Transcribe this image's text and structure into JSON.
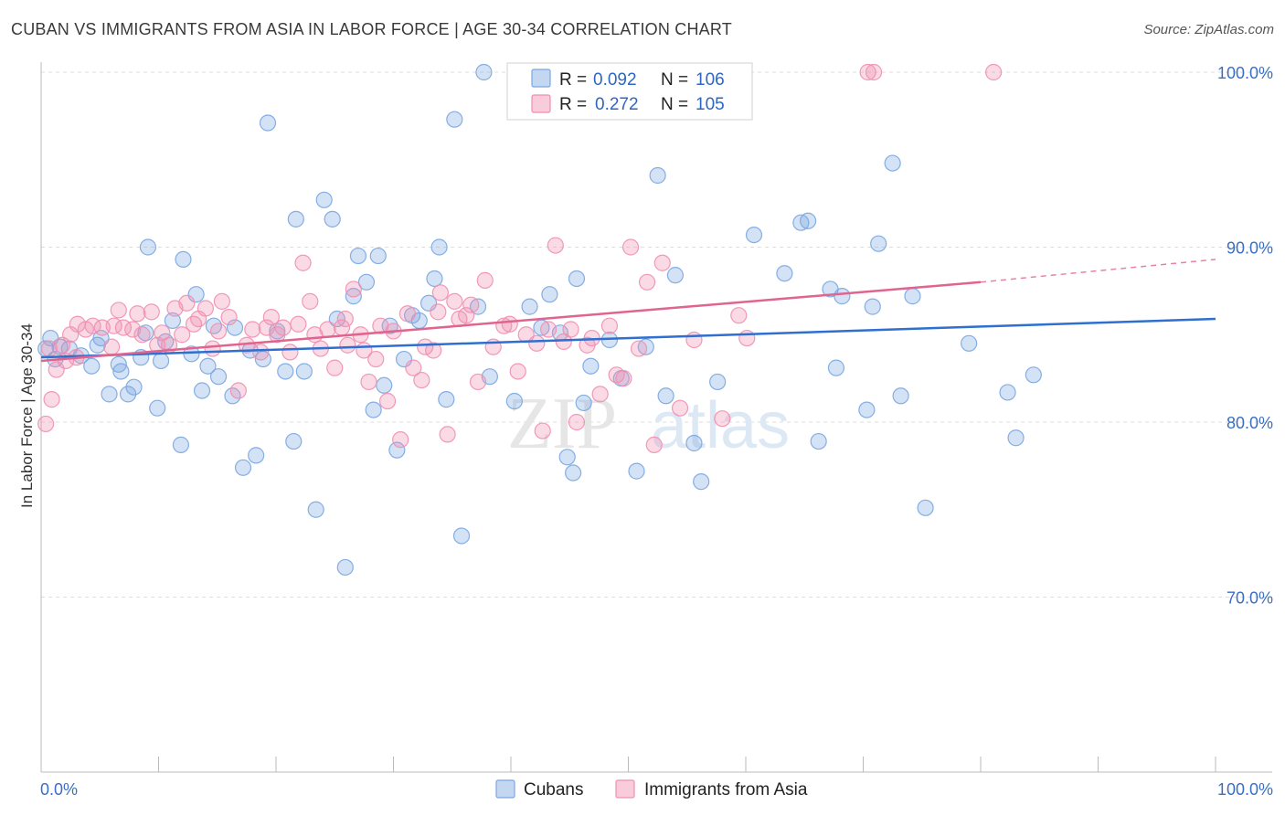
{
  "title": "CUBAN VS IMMIGRANTS FROM ASIA IN LABOR FORCE | AGE 30-34 CORRELATION CHART",
  "source": "Source: ZipAtlas.com",
  "watermark": "ZIPatlas",
  "chart_data": {
    "type": "scatter",
    "ylabel": "In Labor Force | Age 30-34",
    "xlim": [
      0,
      100
    ],
    "ylim": [
      60,
      102
    ],
    "x_tick_labels": [
      "0.0%",
      "100.0%"
    ],
    "y_ticks": [
      {
        "value": 100,
        "label": "100.0%"
      },
      {
        "value": 90,
        "label": "90.0%"
      },
      {
        "value": 80,
        "label": "80.0%"
      },
      {
        "value": 70,
        "label": "70.0%"
      }
    ],
    "legend": {
      "rows": [
        {
          "r_label": "R =",
          "r_value": "0.092",
          "n_label": "N =",
          "n_value": "106",
          "color": "#7aa6e0"
        },
        {
          "r_label": "R =",
          "r_value": "0.272",
          "n_label": "N =",
          "n_value": "105",
          "color": "#ef8fb0"
        }
      ]
    },
    "series": [
      {
        "name": "Cubans",
        "color": "#7aa6e0",
        "line_color": "#2e6fd0",
        "trend": {
          "x": [
            0,
            100
          ],
          "y": [
            83.7,
            85.9
          ]
        },
        "points": [
          [
            0.4,
            84.2
          ],
          [
            0.8,
            84.8
          ],
          [
            1.2,
            83.6
          ],
          [
            1.6,
            84.3
          ],
          [
            2.4,
            84.2
          ],
          [
            3.4,
            83.8
          ],
          [
            4.3,
            83.2
          ],
          [
            4.8,
            84.4
          ],
          [
            5.1,
            84.8
          ],
          [
            5.8,
            81.6
          ],
          [
            6.6,
            83.3
          ],
          [
            6.8,
            82.9
          ],
          [
            7.4,
            81.6
          ],
          [
            7.9,
            82.0
          ],
          [
            8.5,
            83.7
          ],
          [
            8.9,
            85.1
          ],
          [
            9.1,
            90.0
          ],
          [
            9.9,
            80.8
          ],
          [
            10.2,
            83.5
          ],
          [
            10.6,
            84.6
          ],
          [
            11.2,
            85.8
          ],
          [
            11.9,
            78.7
          ],
          [
            12.1,
            89.3
          ],
          [
            12.8,
            83.9
          ],
          [
            13.2,
            87.3
          ],
          [
            13.7,
            81.8
          ],
          [
            14.2,
            83.2
          ],
          [
            14.7,
            85.5
          ],
          [
            15.1,
            82.6
          ],
          [
            16.3,
            81.5
          ],
          [
            16.5,
            85.4
          ],
          [
            17.2,
            77.4
          ],
          [
            17.8,
            84.1
          ],
          [
            18.3,
            78.1
          ],
          [
            18.9,
            83.6
          ],
          [
            19.3,
            97.1
          ],
          [
            20.1,
            85.2
          ],
          [
            20.8,
            82.9
          ],
          [
            21.5,
            78.9
          ],
          [
            21.7,
            91.6
          ],
          [
            22.4,
            82.9
          ],
          [
            23.4,
            75.0
          ],
          [
            24.1,
            92.7
          ],
          [
            24.8,
            91.6
          ],
          [
            25.2,
            85.9
          ],
          [
            25.9,
            71.7
          ],
          [
            26.6,
            87.2
          ],
          [
            27.0,
            89.5
          ],
          [
            27.7,
            88.0
          ],
          [
            28.3,
            80.7
          ],
          [
            28.7,
            89.5
          ],
          [
            29.2,
            82.1
          ],
          [
            29.7,
            85.5
          ],
          [
            30.3,
            78.4
          ],
          [
            30.9,
            83.6
          ],
          [
            31.6,
            86.1
          ],
          [
            32.2,
            85.8
          ],
          [
            33.0,
            86.8
          ],
          [
            33.5,
            88.2
          ],
          [
            33.9,
            90.0
          ],
          [
            34.5,
            81.3
          ],
          [
            35.2,
            97.3
          ],
          [
            35.8,
            73.5
          ],
          [
            37.2,
            86.6
          ],
          [
            37.7,
            100.0
          ],
          [
            38.2,
            82.6
          ],
          [
            40.3,
            81.2
          ],
          [
            41.6,
            86.6
          ],
          [
            42.6,
            85.4
          ],
          [
            43.3,
            87.3
          ],
          [
            44.2,
            85.1
          ],
          [
            44.8,
            78.0
          ],
          [
            45.3,
            77.1
          ],
          [
            45.6,
            88.2
          ],
          [
            46.2,
            81.1
          ],
          [
            46.8,
            83.2
          ],
          [
            48.4,
            84.7
          ],
          [
            49.4,
            82.5
          ],
          [
            50.7,
            77.2
          ],
          [
            51.5,
            84.3
          ],
          [
            52.5,
            94.1
          ],
          [
            53.2,
            81.5
          ],
          [
            54.0,
            88.4
          ],
          [
            55.6,
            78.8
          ],
          [
            56.2,
            76.6
          ],
          [
            57.6,
            82.3
          ],
          [
            60.7,
            90.7
          ],
          [
            63.3,
            88.5
          ],
          [
            64.7,
            91.4
          ],
          [
            65.3,
            91.5
          ],
          [
            66.2,
            78.9
          ],
          [
            67.2,
            87.6
          ],
          [
            67.7,
            83.1
          ],
          [
            68.2,
            87.2
          ],
          [
            70.3,
            80.7
          ],
          [
            70.8,
            86.6
          ],
          [
            71.3,
            90.2
          ],
          [
            72.5,
            94.8
          ],
          [
            73.2,
            81.5
          ],
          [
            74.2,
            87.2
          ],
          [
            75.3,
            75.1
          ],
          [
            79.0,
            84.5
          ],
          [
            82.3,
            81.7
          ],
          [
            83.0,
            79.1
          ],
          [
            84.5,
            82.7
          ]
        ]
      },
      {
        "name": "Immigrants from Asia",
        "color": "#ef8fb0",
        "line_color": "#e0648f",
        "trend": {
          "x": [
            0,
            80
          ],
          "y": [
            83.5,
            88.0
          ]
        },
        "trend_ext": {
          "x": [
            80,
            100
          ],
          "y": [
            88.0,
            89.3
          ]
        },
        "points": [
          [
            0.4,
            79.9
          ],
          [
            0.9,
            81.3
          ],
          [
            1.3,
            83.0
          ],
          [
            1.8,
            84.4
          ],
          [
            2.1,
            83.5
          ],
          [
            2.5,
            85.0
          ],
          [
            3.1,
            85.6
          ],
          [
            3.8,
            85.3
          ],
          [
            4.4,
            85.5
          ],
          [
            5.2,
            85.4
          ],
          [
            6.0,
            84.3
          ],
          [
            6.2,
            85.5
          ],
          [
            6.6,
            86.4
          ],
          [
            7.0,
            85.4
          ],
          [
            7.8,
            85.3
          ],
          [
            8.2,
            86.2
          ],
          [
            8.6,
            85.0
          ],
          [
            9.4,
            86.3
          ],
          [
            9.9,
            84.4
          ],
          [
            10.3,
            85.1
          ],
          [
            10.9,
            84.4
          ],
          [
            11.4,
            86.5
          ],
          [
            12.0,
            85.0
          ],
          [
            12.4,
            86.8
          ],
          [
            13.0,
            85.6
          ],
          [
            13.4,
            85.9
          ],
          [
            14.0,
            86.5
          ],
          [
            14.6,
            84.2
          ],
          [
            15.1,
            85.2
          ],
          [
            15.4,
            86.9
          ],
          [
            16.0,
            86.0
          ],
          [
            16.8,
            81.8
          ],
          [
            17.5,
            84.4
          ],
          [
            18.0,
            85.3
          ],
          [
            18.7,
            84.0
          ],
          [
            19.2,
            85.4
          ],
          [
            19.6,
            86.0
          ],
          [
            20.1,
            85.0
          ],
          [
            20.6,
            85.4
          ],
          [
            21.2,
            84.0
          ],
          [
            21.9,
            85.6
          ],
          [
            22.3,
            89.1
          ],
          [
            22.9,
            86.9
          ],
          [
            23.3,
            85.0
          ],
          [
            23.8,
            84.2
          ],
          [
            24.4,
            85.3
          ],
          [
            25.0,
            83.1
          ],
          [
            25.6,
            85.4
          ],
          [
            26.1,
            84.4
          ],
          [
            26.6,
            87.6
          ],
          [
            27.2,
            85.0
          ],
          [
            27.5,
            84.1
          ],
          [
            27.9,
            82.3
          ],
          [
            28.5,
            83.6
          ],
          [
            28.9,
            85.5
          ],
          [
            29.5,
            81.2
          ],
          [
            30.0,
            85.2
          ],
          [
            30.6,
            79.0
          ],
          [
            31.2,
            86.2
          ],
          [
            31.7,
            83.1
          ],
          [
            32.4,
            82.4
          ],
          [
            32.7,
            84.3
          ],
          [
            33.4,
            84.1
          ],
          [
            34.0,
            87.4
          ],
          [
            34.6,
            79.3
          ],
          [
            35.2,
            86.9
          ],
          [
            35.6,
            85.9
          ],
          [
            36.2,
            86.1
          ],
          [
            36.6,
            86.7
          ],
          [
            37.2,
            82.3
          ],
          [
            37.8,
            88.1
          ],
          [
            38.5,
            84.3
          ],
          [
            39.4,
            85.5
          ],
          [
            39.9,
            85.6
          ],
          [
            40.6,
            82.9
          ],
          [
            41.3,
            85.0
          ],
          [
            42.2,
            84.5
          ],
          [
            42.7,
            79.5
          ],
          [
            43.2,
            85.3
          ],
          [
            43.8,
            90.1
          ],
          [
            44.5,
            84.6
          ],
          [
            45.1,
            85.3
          ],
          [
            45.6,
            80.0
          ],
          [
            46.5,
            84.4
          ],
          [
            46.9,
            84.8
          ],
          [
            47.6,
            81.6
          ],
          [
            48.4,
            85.5
          ],
          [
            49.0,
            82.7
          ],
          [
            49.6,
            82.5
          ],
          [
            50.2,
            90.0
          ],
          [
            50.9,
            84.2
          ],
          [
            51.6,
            88.0
          ],
          [
            52.2,
            78.7
          ],
          [
            52.9,
            89.1
          ],
          [
            54.4,
            80.8
          ],
          [
            55.6,
            84.7
          ],
          [
            58.0,
            80.2
          ],
          [
            59.4,
            86.1
          ],
          [
            60.1,
            84.8
          ],
          [
            70.4,
            100.0
          ],
          [
            70.9,
            100.0
          ],
          [
            81.1,
            100.0
          ],
          [
            0.7,
            84.2
          ],
          [
            3.0,
            83.7
          ],
          [
            25.9,
            85.9
          ],
          [
            33.8,
            86.3
          ]
        ]
      }
    ]
  },
  "bottom_legend": [
    {
      "label": "Cubans",
      "color": "#7aa6e0"
    },
    {
      "label": "Immigrants from Asia",
      "color": "#ef8fb0"
    }
  ]
}
